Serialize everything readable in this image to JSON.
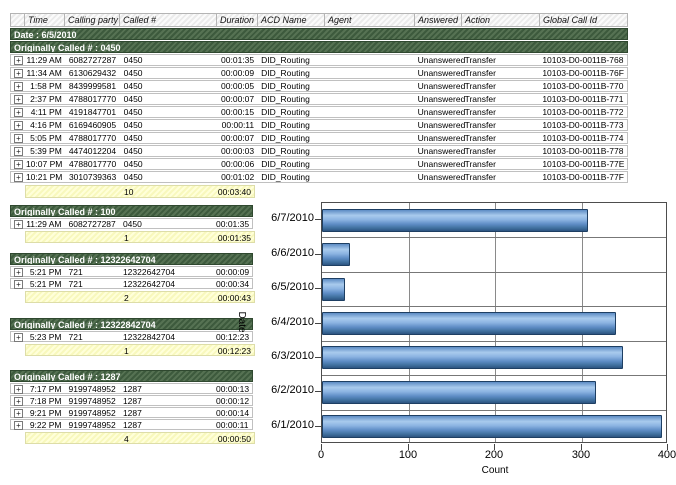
{
  "icons": {
    "expand": "+"
  },
  "colors": {
    "group_header_green": "#41603f",
    "summary_yellow": "#ffffcc",
    "bar_blue_light": "#a9cbed",
    "bar_blue_mid": "#5d8cc4",
    "bar_blue_dark": "#2c5480",
    "bar_border": "#1e3f63"
  },
  "table": {
    "columns": [
      "Time",
      "Calling party #",
      "Called #",
      "Duration",
      "ACD Name",
      "Agent",
      "Answered",
      "Action",
      "Global Call Id"
    ],
    "date_header": "Date : 6/5/2010",
    "groups": [
      {
        "title": "Originally Called # : 0450",
        "rows": [
          [
            "11:29 AM",
            "6082727287",
            "0450",
            "00:01:35",
            "DID_Routing",
            "",
            "Unanswered",
            "Transfer",
            "10103-D0-0011B-768"
          ],
          [
            "11:34 AM",
            "6130629432",
            "0450",
            "00:00:09",
            "DID_Routing",
            "",
            "Unanswered",
            "Transfer",
            "10103-D0-0011B-76F"
          ],
          [
            "1:58 PM",
            "8439999581",
            "0450",
            "00:00:05",
            "DID_Routing",
            "",
            "Unanswered",
            "Transfer",
            "10103-D0-0011B-770"
          ],
          [
            "2:37 PM",
            "4788017770",
            "0450",
            "00:00:07",
            "DID_Routing",
            "",
            "Unanswered",
            "Transfer",
            "10103-D0-0011B-771"
          ],
          [
            "4:11 PM",
            "4191847701",
            "0450",
            "00:00:15",
            "DID_Routing",
            "",
            "Unanswered",
            "Transfer",
            "10103-D0-0011B-772"
          ],
          [
            "4:16 PM",
            "6169460905",
            "0450",
            "00:00:11",
            "DID_Routing",
            "",
            "Unanswered",
            "Transfer",
            "10103-D0-0011B-773"
          ],
          [
            "5:05 PM",
            "4788017770",
            "0450",
            "00:00:07",
            "DID_Routing",
            "",
            "Unanswered",
            "Transfer",
            "10103-D0-0011B-774"
          ],
          [
            "5:39 PM",
            "4474012204",
            "0450",
            "00:00:03",
            "DID_Routing",
            "",
            "Unanswered",
            "Transfer",
            "10103-D0-0011B-778"
          ],
          [
            "10:07 PM",
            "4788017770",
            "0450",
            "00:00:06",
            "DID_Routing",
            "",
            "Unanswered",
            "Transfer",
            "10103-D0-0011B-77E"
          ],
          [
            "10:21 PM",
            "3010739363",
            "0450",
            "00:01:02",
            "DID_Routing",
            "",
            "Unanswered",
            "Transfer",
            "10103-D0-0011B-77F"
          ]
        ],
        "summary": {
          "count": "10",
          "duration": "00:03:40"
        }
      },
      {
        "title": "Originally Called # : 100",
        "rows": [
          [
            "11:29 AM",
            "6082727287",
            "0450",
            "00:01:35"
          ]
        ],
        "summary": {
          "count": "1",
          "duration": "00:01:35"
        }
      },
      {
        "title": "Originally Called # : 12322642704",
        "rows": [
          [
            "5:21 PM",
            "721",
            "12322642704",
            "00:00:09"
          ],
          [
            "5:21 PM",
            "721",
            "12322642704",
            "00:00:34"
          ]
        ],
        "summary": {
          "count": "2",
          "duration": "00:00:43"
        }
      },
      {
        "title": "Originally Called # : 12322842704",
        "rows": [
          [
            "5:23 PM",
            "721",
            "12322842704",
            "00:12:23"
          ]
        ],
        "summary": {
          "count": "1",
          "duration": "00:12:23"
        }
      },
      {
        "title": "Originally Called # : 1287",
        "rows": [
          [
            "7:17 PM",
            "9199748952",
            "1287",
            "00:00:13"
          ],
          [
            "7:18 PM",
            "9199748952",
            "1287",
            "00:00:12"
          ],
          [
            "9:21 PM",
            "9199748952",
            "1287",
            "00:00:14"
          ],
          [
            "9:22 PM",
            "9199748952",
            "1287",
            "00:00:11"
          ]
        ],
        "summary": {
          "count": "4",
          "duration": "00:00:50"
        }
      }
    ]
  },
  "chart_data": {
    "type": "bar",
    "orientation": "horizontal",
    "categories": [
      "6/7/2010",
      "6/6/2010",
      "6/5/2010",
      "6/4/2010",
      "6/3/2010",
      "6/2/2010",
      "6/1/2010"
    ],
    "values": [
      308,
      32,
      27,
      340,
      348,
      317,
      393
    ],
    "title": "",
    "xlabel": "Count",
    "ylabel": "Date",
    "xlim": [
      0,
      400
    ],
    "xticks": [
      0,
      100,
      200,
      300,
      400
    ],
    "grid": true,
    "legend": "none"
  }
}
